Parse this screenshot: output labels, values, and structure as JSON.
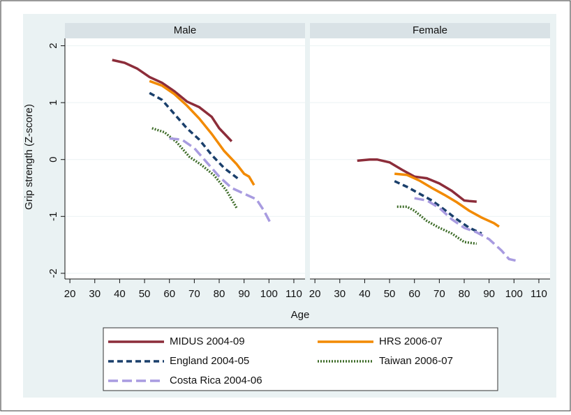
{
  "chart_data": {
    "type": "line",
    "ylabel": "Grip strength (Z-score)",
    "xlabel": "Age",
    "panels": [
      "Male",
      "Female"
    ],
    "xlim": [
      18,
      114.5
    ],
    "xticks": [
      20,
      30,
      40,
      50,
      60,
      70,
      80,
      90,
      100,
      110
    ],
    "ylim": [
      -2.1,
      2.13
    ],
    "yticks": [
      -2,
      -1,
      0,
      1,
      2
    ],
    "grid": true,
    "series": [
      {
        "name": "MIDUS 2004-09",
        "color": "#8c2d3a",
        "dash": "none",
        "x": [
          [
            37,
            42,
            47,
            52,
            57,
            62,
            67,
            72,
            77,
            80,
            85
          ],
          [
            37,
            42,
            45,
            50,
            55,
            60,
            65,
            70,
            75,
            80,
            82,
            85
          ]
        ],
        "values": [
          [
            1.75,
            1.7,
            1.6,
            1.45,
            1.35,
            1.2,
            1.02,
            0.92,
            0.75,
            0.55,
            0.32
          ],
          [
            -0.02,
            0.0,
            0.0,
            -0.05,
            -0.18,
            -0.3,
            -0.33,
            -0.42,
            -0.55,
            -0.72,
            -0.73,
            -0.74
          ]
        ]
      },
      {
        "name": "HRS 2006-07",
        "color": "#f28a00",
        "dash": "none",
        "x": [
          [
            52,
            57,
            62,
            67,
            72,
            77,
            82,
            87,
            90,
            92,
            94
          ],
          [
            52,
            57,
            62,
            67,
            72,
            77,
            82,
            87,
            92,
            94
          ]
        ],
        "values": [
          [
            1.38,
            1.3,
            1.15,
            0.95,
            0.72,
            0.45,
            0.15,
            -0.08,
            -0.25,
            -0.3,
            -0.45
          ],
          [
            -0.25,
            -0.27,
            -0.37,
            -0.5,
            -0.62,
            -0.75,
            -0.9,
            -1.02,
            -1.12,
            -1.18
          ]
        ]
      },
      {
        "name": "England 2004-05",
        "color": "#1a3f6b",
        "dash": "8,5",
        "x": [
          [
            52,
            57,
            62,
            67,
            72,
            77,
            82,
            88
          ],
          [
            52,
            57,
            62,
            67,
            72,
            77,
            82,
            87
          ]
        ],
        "values": [
          [
            1.17,
            1.05,
            0.8,
            0.55,
            0.35,
            0.08,
            -0.15,
            -0.35
          ],
          [
            -0.38,
            -0.48,
            -0.6,
            -0.72,
            -0.88,
            -1.05,
            -1.2,
            -1.3
          ]
        ]
      },
      {
        "name": "Taiwan 2006-07",
        "color": "#3f6d2a",
        "dash": "2,2",
        "x": [
          [
            53,
            58,
            63,
            68,
            73,
            78,
            83,
            87
          ],
          [
            53,
            57,
            60,
            65,
            70,
            75,
            80,
            85
          ]
        ],
        "values": [
          [
            0.55,
            0.48,
            0.3,
            0.05,
            -0.1,
            -0.28,
            -0.55,
            -0.85
          ],
          [
            -0.83,
            -0.83,
            -0.9,
            -1.08,
            -1.2,
            -1.3,
            -1.45,
            -1.48
          ]
        ]
      },
      {
        "name": "Costa Rica 2004-06",
        "color": "#a89be0",
        "dash": "14,6",
        "x": [
          [
            60,
            65,
            70,
            75,
            80,
            85,
            90,
            95,
            98,
            101
          ],
          [
            60,
            65,
            70,
            75,
            80,
            85,
            90,
            95,
            98,
            101
          ]
        ],
        "values": [
          [
            0.37,
            0.35,
            0.2,
            -0.05,
            -0.3,
            -0.5,
            -0.6,
            -0.7,
            -0.9,
            -1.15
          ],
          [
            -0.68,
            -0.72,
            -0.85,
            -1.05,
            -1.2,
            -1.28,
            -1.4,
            -1.6,
            -1.75,
            -1.78
          ]
        ]
      }
    ]
  }
}
